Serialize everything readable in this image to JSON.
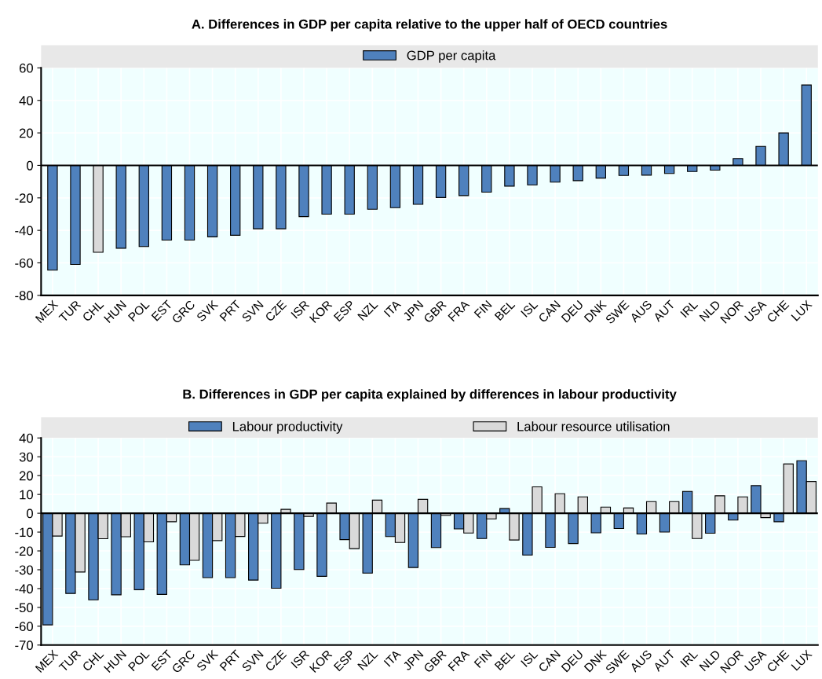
{
  "chart_data": [
    {
      "type": "bar",
      "title": "A. Differences in GDP per capita relative to the upper half of OECD countries",
      "categories": [
        "MEX",
        "TUR",
        "CHL",
        "HUN",
        "POL",
        "EST",
        "GRC",
        "SVK",
        "PRT",
        "SVN",
        "CZE",
        "ISR",
        "KOR",
        "ESP",
        "NZL",
        "ITA",
        "JPN",
        "GBR",
        "FRA",
        "FIN",
        "BEL",
        "ISL",
        "CAN",
        "DEU",
        "DNK",
        "SWE",
        "AUS",
        "AUT",
        "IRL",
        "NLD",
        "NOR",
        "USA",
        "CHE",
        "LUX"
      ],
      "series": [
        {
          "name": "GDP per capita",
          "color": "#4f81bd",
          "colors": [
            "#4f81bd",
            "#4f81bd",
            "#d9d9d9",
            "#4f81bd",
            "#4f81bd",
            "#4f81bd",
            "#4f81bd",
            "#4f81bd",
            "#4f81bd",
            "#4f81bd",
            "#4f81bd",
            "#4f81bd",
            "#4f81bd",
            "#4f81bd",
            "#4f81bd",
            "#4f81bd",
            "#4f81bd",
            "#4f81bd",
            "#4f81bd",
            "#4f81bd",
            "#4f81bd",
            "#4f81bd",
            "#4f81bd",
            "#4f81bd",
            "#4f81bd",
            "#4f81bd",
            "#4f81bd",
            "#4f81bd",
            "#4f81bd",
            "#4f81bd",
            "#4f81bd",
            "#4f81bd",
            "#4f81bd",
            "#4f81bd"
          ],
          "values": [
            -64.5,
            -61,
            -53.5,
            -51,
            -50,
            -46,
            -46,
            -44,
            -43,
            -39,
            -39,
            -31.5,
            -30,
            -30,
            -27,
            -26,
            -24,
            -19.8,
            -18.6,
            -16.5,
            -12.8,
            -12,
            -10.3,
            -9.4,
            -7.8,
            -6.2,
            -6,
            -5,
            -3.8,
            -2.9,
            4.2,
            11.7,
            20,
            49.5
          ]
        }
      ],
      "ylim": [
        -80,
        60
      ],
      "yticks": [
        -80,
        -60,
        -40,
        -20,
        0,
        20,
        40,
        60
      ],
      "grid": true,
      "legend": "top"
    },
    {
      "type": "bar",
      "title": "B. Differences in GDP per capita explained by differences in labour productivity",
      "categories": [
        "MEX",
        "TUR",
        "CHL",
        "HUN",
        "POL",
        "EST",
        "GRC",
        "SVK",
        "PRT",
        "SVN",
        "CZE",
        "ISR",
        "KOR",
        "ESP",
        "NZL",
        "ITA",
        "JPN",
        "GBR",
        "FRA",
        "FIN",
        "BEL",
        "ISL",
        "CAN",
        "DEU",
        "DNK",
        "SWE",
        "AUS",
        "AUT",
        "IRL",
        "NLD",
        "NOR",
        "USA",
        "CHE",
        "LUX"
      ],
      "series": [
        {
          "name": "Labour productivity",
          "color": "#4f81bd",
          "values": [
            -59.3,
            -42.6,
            -46,
            -43.3,
            -40.6,
            -43.1,
            -27.4,
            -34.2,
            -34.2,
            -35.5,
            -39.8,
            -29.9,
            -33.5,
            -14,
            -31.8,
            -12.4,
            -28.8,
            -18.2,
            -8.3,
            -13.4,
            2.5,
            -22.2,
            -18.1,
            -16.1,
            -10.4,
            -8.1,
            -11,
            -10,
            11.6,
            -10.6,
            -3.6,
            14.7,
            -4.5,
            27.9
          ]
        },
        {
          "name": "Labour resource utilisation",
          "color": "#d9d9d9",
          "values": [
            -12.1,
            -31.2,
            -13.5,
            -12.5,
            -15.2,
            -4.5,
            -25,
            -14.5,
            -12.3,
            -5.3,
            2.1,
            -1.7,
            5.4,
            -18.8,
            7,
            -15.5,
            7.4,
            -1.1,
            -10.5,
            -3,
            -14.2,
            14,
            10.4,
            8.7,
            3.3,
            2.8,
            6.2,
            6.2,
            -13.4,
            9.3,
            8.7,
            -2.3,
            26.2,
            16.9
          ]
        }
      ],
      "ylim": [
        -70,
        40
      ],
      "yticks": [
        -70,
        -60,
        -50,
        -40,
        -30,
        -20,
        -10,
        0,
        10,
        20,
        30,
        40
      ],
      "grid": true,
      "legend": "top"
    }
  ]
}
